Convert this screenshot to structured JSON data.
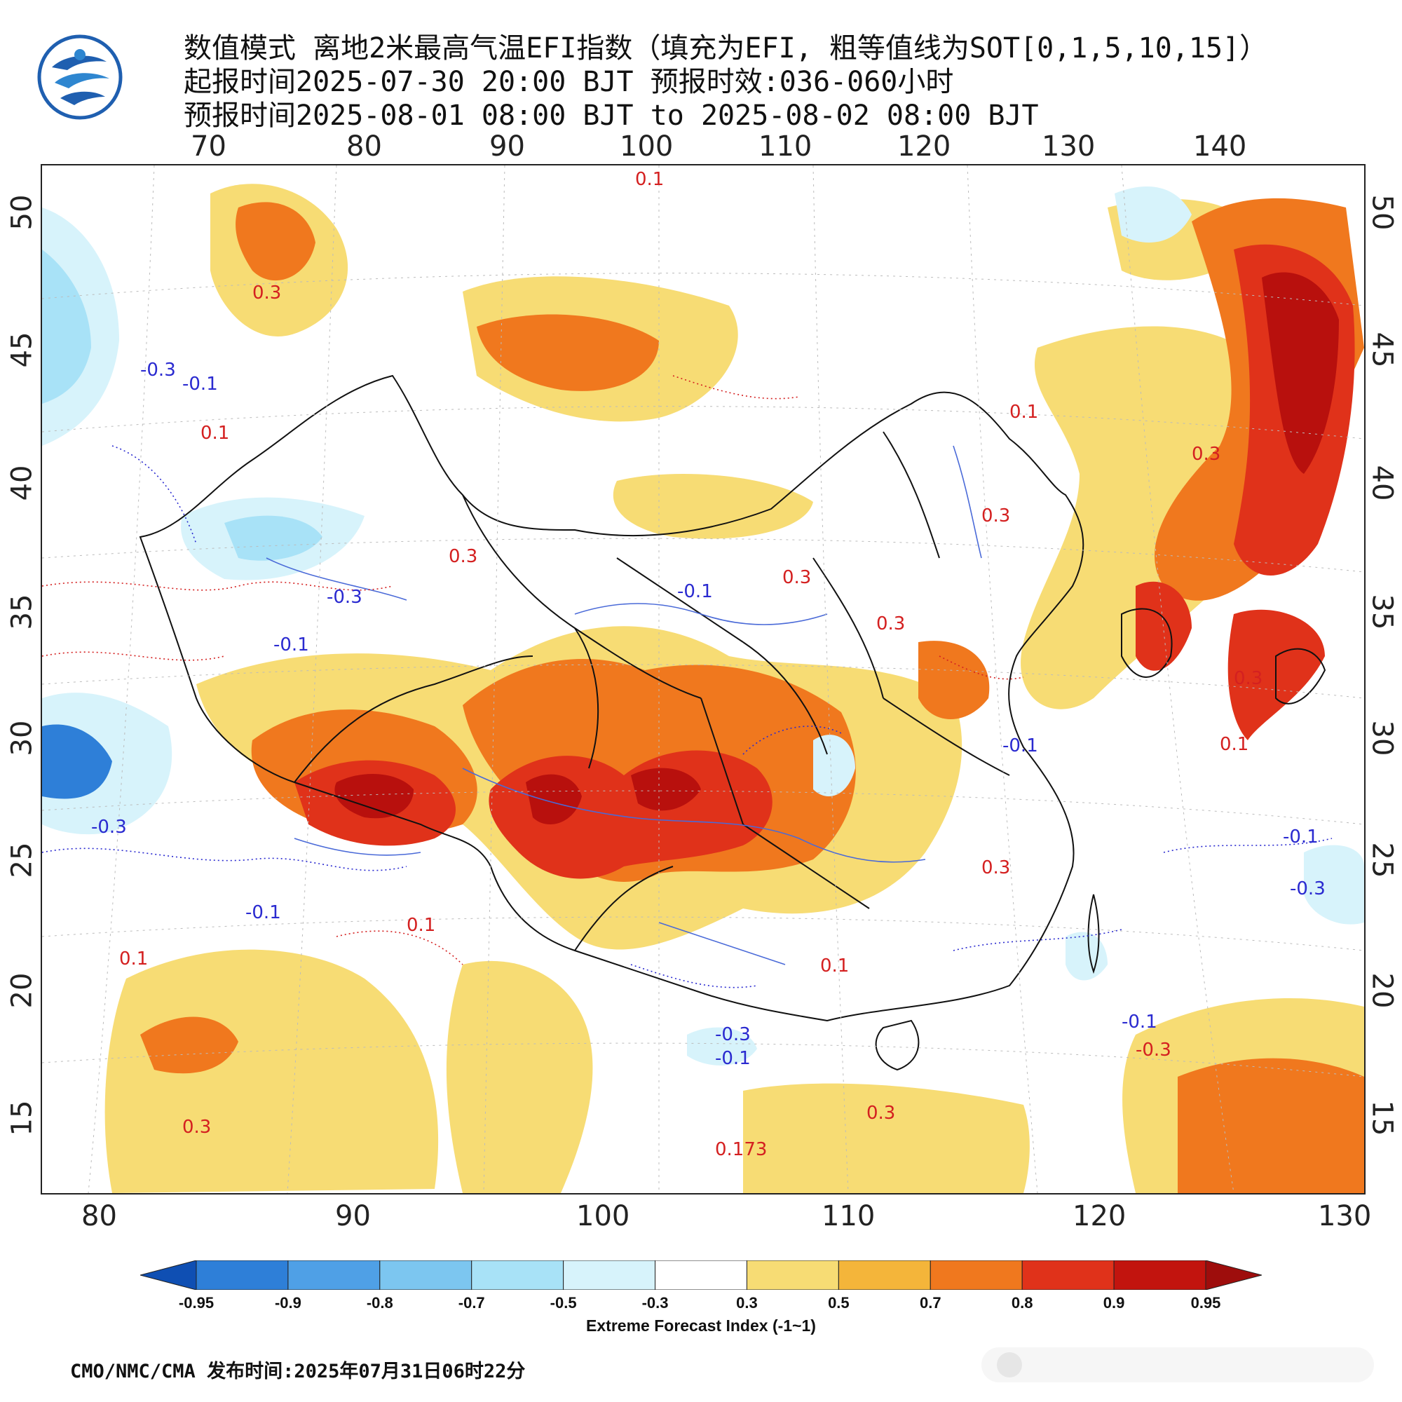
{
  "header": {
    "line1": "数值模式 离地2米最高气温EFI指数（填充为EFI, 粗等值线为SOT[0,1,5,10,15]）",
    "line2": "起报时间2025-07-30 20:00 BJT 预报时效:036-060小时",
    "line3": "预报时间2025-08-01 08:00 BJT to 2025-08-02 08:00 BJT"
  },
  "map": {
    "top_longitude_ticks": [
      "70",
      "80",
      "90",
      "100",
      "110",
      "120",
      "130",
      "140"
    ],
    "bottom_longitude_ticks": [
      "80",
      "90",
      "100",
      "110",
      "120",
      "130"
    ],
    "left_latitude_ticks": [
      "50",
      "45",
      "40",
      "35",
      "30",
      "25",
      "20",
      "15"
    ],
    "right_latitude_ticks": [
      "50",
      "45",
      "40",
      "35",
      "30",
      "25",
      "20",
      "15"
    ],
    "contour_labels": {
      "neg_01": "-0.1",
      "neg_03": "-0.3",
      "pos_01": "0.1",
      "pos_03": "0.3",
      "garbled": "0.173"
    }
  },
  "legend": {
    "title": "Extreme Forecast Index (-1~1)",
    "labels": [
      "-0.95",
      "-0.9",
      "-0.8",
      "-0.7",
      "-0.5",
      "-0.3",
      "0.3",
      "0.5",
      "0.7",
      "0.8",
      "0.9",
      "0.95"
    ],
    "colors": [
      "#0f4fb3",
      "#2e7fd8",
      "#4fa0e6",
      "#7cc6f0",
      "#a8e2f7",
      "#d7f3fb",
      "#ffffff",
      "#f7dc74",
      "#f4b53a",
      "#f0781e",
      "#e0321a",
      "#c2140e",
      "#9e0d0c"
    ]
  },
  "footer": {
    "text": "CMO/NMC/CMA 发布时间:2025年07月31日06时22分"
  },
  "palette": {
    "efi_warm_light": "#f7dc74",
    "efi_warm_mid": "#f4b53a",
    "efi_warm_orange": "#f0781e",
    "efi_hot_red": "#e0321a",
    "efi_deep_red": "#b8100d",
    "efi_cool_light": "#d7f3fb",
    "efi_cool_mid": "#a8e2f7",
    "efi_cool_blue": "#7cc6f0",
    "efi_cool_deep": "#2e7fd8",
    "contour_pos": "#d42020",
    "contour_neg": "#2a2ad0",
    "river": "#4a6ad8",
    "border": "#111111"
  }
}
